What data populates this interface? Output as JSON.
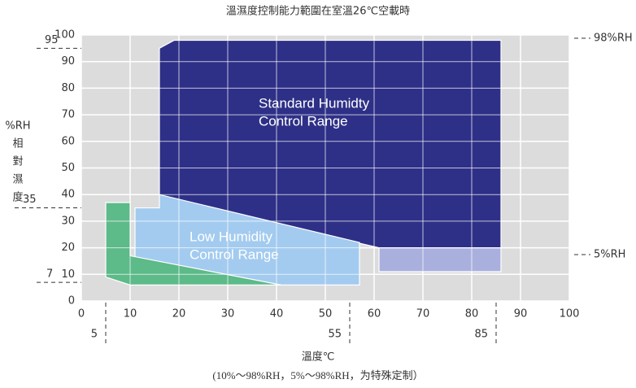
{
  "chart_data": {
    "type": "region",
    "title": "溫濕度控制能力範圍在室溫26℃空載時",
    "xlabel": "溫度℃",
    "ylabel": [
      "%RH",
      "相",
      "對",
      "濕",
      "度"
    ],
    "footnote": "(10%～98%RH，5%～98%RH，为特殊定制）",
    "xlim": [
      0,
      100
    ],
    "xticks": [
      0,
      10,
      20,
      30,
      40,
      50,
      60,
      70,
      80,
      90,
      100
    ],
    "ylim": [
      0,
      100
    ],
    "yticks": [
      0,
      10,
      20,
      30,
      40,
      50,
      60,
      70,
      80,
      90,
      100
    ],
    "grid": true,
    "regions": [
      {
        "name": [
          "Standard  Humidty",
          "Control Range"
        ],
        "color": "#2e3087",
        "x": [
          16,
          19,
          86,
          86,
          61,
          21,
          16
        ],
        "y": [
          95,
          98,
          98,
          20,
          20,
          37,
          40
        ]
      },
      {
        "color": "#aab0de",
        "x": [
          61,
          86,
          86,
          61
        ],
        "y": [
          20,
          20,
          11,
          11
        ]
      },
      {
        "name": [
          "Low Humidity",
          "Control Range"
        ],
        "color": "#a3cbef",
        "x": [
          11,
          16,
          16,
          57,
          57,
          11
        ],
        "y": [
          35,
          35,
          40,
          22,
          6,
          6
        ]
      },
      {
        "color": "#5dba89",
        "x": [
          5,
          10,
          10,
          41,
          10,
          5
        ],
        "y": [
          37,
          37,
          17,
          6,
          6,
          9
        ]
      }
    ],
    "yrefs": [
      95,
      35,
      7
    ],
    "xrefs": [
      5,
      55,
      85
    ],
    "right_refs": [
      "98%RH",
      "5%RH"
    ]
  }
}
